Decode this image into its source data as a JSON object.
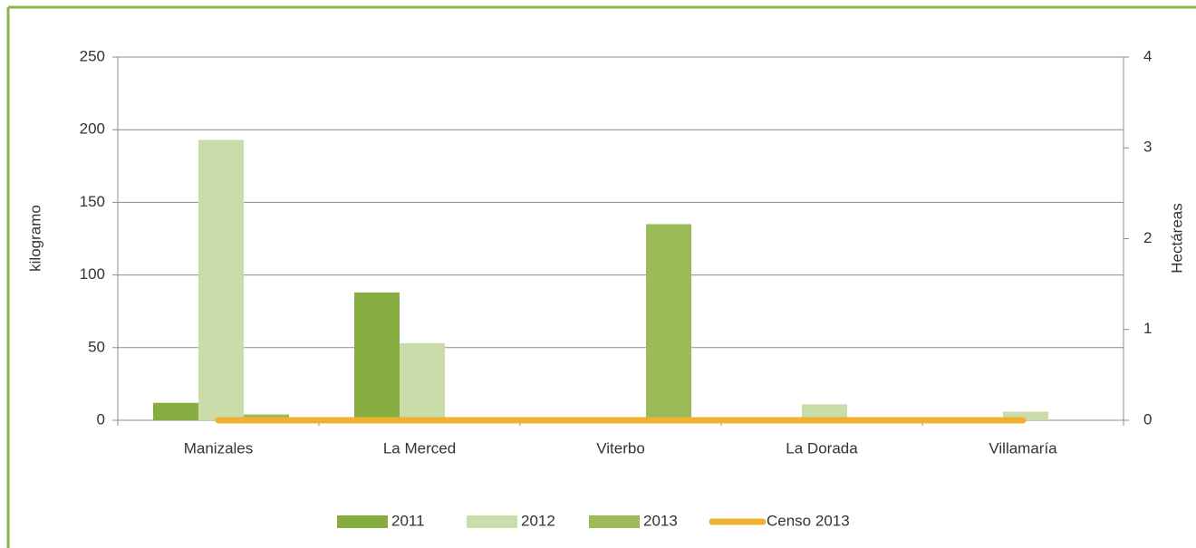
{
  "chart_data": {
    "type": "bar",
    "categories": [
      "Manizales",
      "La Merced",
      "Viterbo",
      "La Dorada",
      "Villamaría"
    ],
    "series": [
      {
        "name": "2011",
        "color": "#86ad3f",
        "values": [
          12,
          88,
          0,
          0,
          0
        ]
      },
      {
        "name": "2012",
        "color": "#c9dcaa",
        "values": [
          193,
          53,
          0,
          11,
          6
        ]
      },
      {
        "name": "2013",
        "color": "#9bbb59",
        "values": [
          4,
          0,
          135,
          0,
          0
        ]
      },
      {
        "name": "Censo 2013",
        "color": "#f0b030",
        "type": "line",
        "axis": "y2",
        "values": [
          0,
          0,
          0,
          0,
          0
        ]
      }
    ],
    "ylabel": "kilogramo",
    "y2label": "Hectáreas",
    "ylim": [
      0,
      250
    ],
    "yticks": [
      0,
      50,
      100,
      150,
      200,
      250
    ],
    "y2lim": [
      0,
      4
    ],
    "y2ticks": [
      0,
      1,
      2,
      3,
      4
    ],
    "grid": true,
    "legend": "bottom"
  }
}
